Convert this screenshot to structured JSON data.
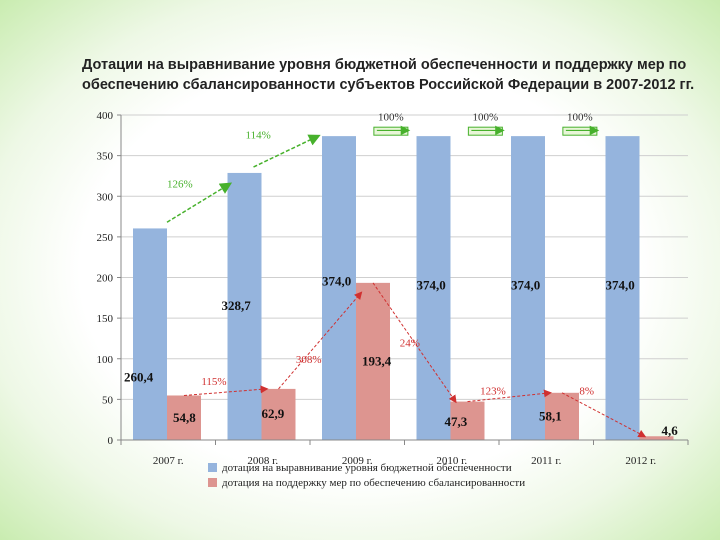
{
  "title": "Дотации на выравнивание уровня бюджетной обеспеченности  и поддержку мер по обеспечению сбалансированности субъектов Российской Федерации в 2007-2012 гг.",
  "colors": {
    "series1": "#95b4dd",
    "series2": "#dd9590",
    "green_arrow": "#47b12c",
    "red_arrow": "#d03030"
  },
  "chart_data": {
    "type": "bar",
    "title": "Дотации на выравнивание уровня бюджетной обеспеченности  и поддержку мер по обеспечению сбалансированности субъектов Российской Федерации в 2007-2012 гг.",
    "categories": [
      "2007 г.",
      "2008 г.",
      "2009 г.",
      "2010 г.",
      "2011 г.",
      "2012 г."
    ],
    "ylim": [
      0,
      400
    ],
    "yticks": [
      "0",
      "50",
      "100",
      "150",
      "200",
      "250",
      "300",
      "350",
      "400"
    ],
    "grid": true,
    "legend_position": "bottom",
    "series": [
      {
        "name": "дотация на выравнивание уровня бюджетной обеспеченности",
        "values": [
          260.4,
          328.7,
          374.0,
          374.0,
          374.0,
          374.0
        ],
        "labels": [
          "260,4",
          "328,7",
          "374,0",
          "374,0",
          "374,0",
          "374,0"
        ]
      },
      {
        "name": "дотация на поддержку мер по обеспечению сбалансированности",
        "values": [
          54.8,
          62.9,
          193.4,
          47.3,
          58.1,
          4.6
        ],
        "labels": [
          "54,8",
          "62,9",
          "193,4",
          "47,3",
          "58,1",
          "4,6"
        ]
      }
    ],
    "annotations": {
      "series1_growth": [
        {
          "text": "126%",
          "from": 0,
          "to": 1
        },
        {
          "text": "114%",
          "from": 1,
          "to": 2
        },
        {
          "text": "100%",
          "from": 2,
          "to": 3
        },
        {
          "text": "100%",
          "from": 3,
          "to": 4
        },
        {
          "text": "100%",
          "from": 4,
          "to": 5
        }
      ],
      "series2_growth": [
        {
          "text": "115%",
          "from": 0,
          "to": 1
        },
        {
          "text": "308%",
          "from": 1,
          "to": 2
        },
        {
          "text": "24%",
          "from": 2,
          "to": 3
        },
        {
          "text": "123%",
          "from": 3,
          "to": 4
        },
        {
          "text": "8%",
          "from": 4,
          "to": 5
        }
      ]
    }
  }
}
